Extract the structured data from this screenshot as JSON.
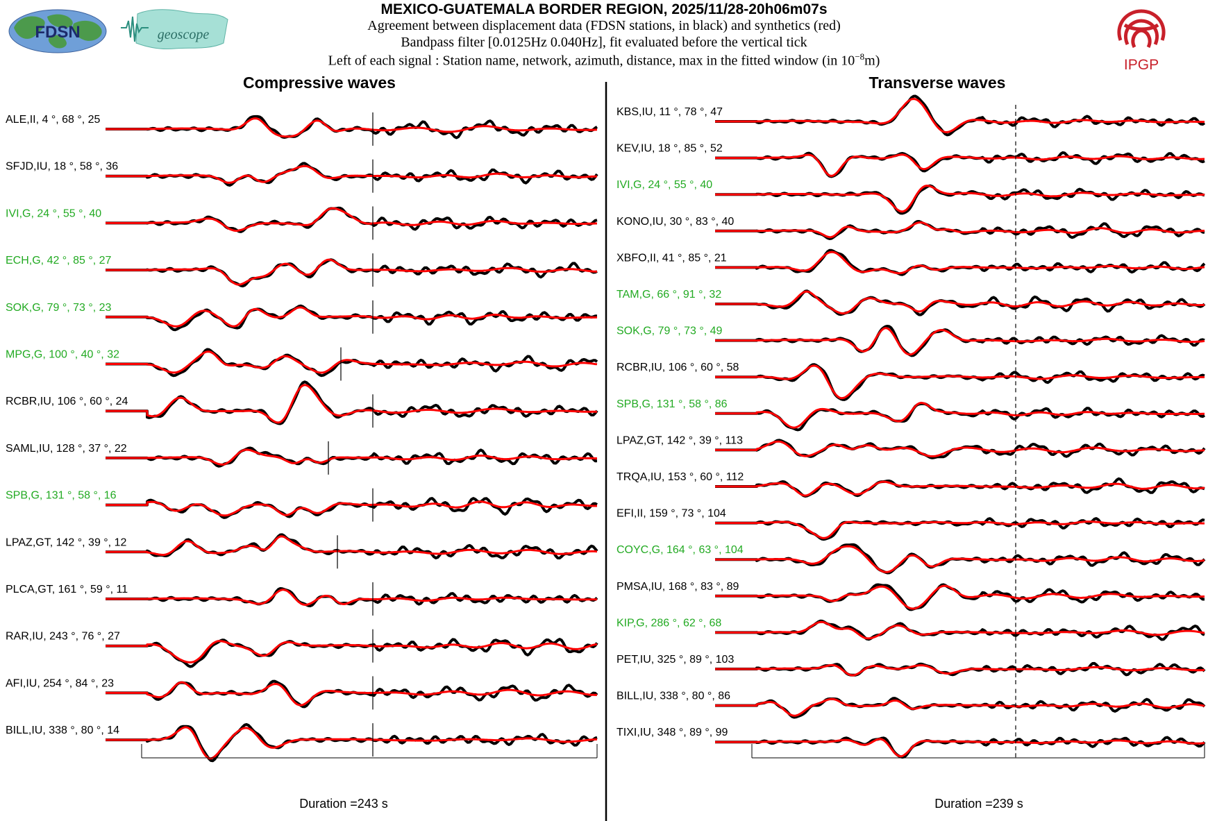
{
  "header": {
    "title": "MEXICO-GUATEMALA BORDER REGION, 2025/11/28-20h06m07s",
    "line1": "Agreement between displacement data (FDSN stations, in black) and synthetics (red)",
    "line2": "Bandpass filter [0.0125Hz 0.040Hz], fit evaluated before the vertical tick",
    "line3_prefix": "Left of each signal : Station name, network, azimuth, distance, max in the fitted window (in 10",
    "line3_exp": "−8",
    "line3_suffix": "m)"
  },
  "logos": {
    "fdsn_text": "FDSN",
    "geoscope_text": "geoscope",
    "ipgp_text": "IPGP"
  },
  "colors": {
    "data": "#000000",
    "synthetic": "#ff0000",
    "label_default": "#000000",
    "label_highlight": "#22aa22",
    "ipgp_red": "#c8202a",
    "fdsn_green": "#3a9a3a",
    "geoscope_teal": "#7ccfc3"
  },
  "chart_data": [
    {
      "type": "line",
      "title": "Compressive waves",
      "duration_label": "Duration =243 s",
      "duration_s": 243,
      "series_legend": [
        "data (black)",
        "synthetics (red)"
      ],
      "stations": [
        {
          "label": "ALE,II, 4 °, 68 °, 25",
          "name": "ALE",
          "network": "II",
          "azimuth": 4,
          "distance": 68,
          "max": 25,
          "highlight": false
        },
        {
          "label": "SFJD,IU, 18 °, 58 °, 36",
          "name": "SFJD",
          "network": "IU",
          "azimuth": 18,
          "distance": 58,
          "max": 36,
          "highlight": false
        },
        {
          "label": "IVI,G, 24 °, 55 °, 40",
          "name": "IVI",
          "network": "G",
          "azimuth": 24,
          "distance": 55,
          "max": 40,
          "highlight": true
        },
        {
          "label": "ECH,G, 42 °, 85 °, 27",
          "name": "ECH",
          "network": "G",
          "azimuth": 42,
          "distance": 85,
          "max": 27,
          "highlight": true
        },
        {
          "label": "SOK,G, 79 °, 73 °, 23",
          "name": "SOK",
          "network": "G",
          "azimuth": 79,
          "distance": 73,
          "max": 23,
          "highlight": true
        },
        {
          "label": "MPG,G, 100 °, 40 °, 32",
          "name": "MPG",
          "network": "G",
          "azimuth": 100,
          "distance": 40,
          "max": 32,
          "highlight": true
        },
        {
          "label": "RCBR,IU, 106 °, 60 °, 24",
          "name": "RCBR",
          "network": "IU",
          "azimuth": 106,
          "distance": 60,
          "max": 24,
          "highlight": false
        },
        {
          "label": "SAML,IU, 128 °, 37 °, 22",
          "name": "SAML",
          "network": "IU",
          "azimuth": 128,
          "distance": 37,
          "max": 22,
          "highlight": false
        },
        {
          "label": "SPB,G, 131 °, 58 °, 16",
          "name": "SPB",
          "network": "G",
          "azimuth": 131,
          "distance": 58,
          "max": 16,
          "highlight": true
        },
        {
          "label": "LPAZ,GT, 142 °, 39 °, 12",
          "name": "LPAZ",
          "network": "GT",
          "azimuth": 142,
          "distance": 39,
          "max": 12,
          "highlight": false
        },
        {
          "label": "PLCA,GT, 161 °, 59 °, 11",
          "name": "PLCA",
          "network": "GT",
          "azimuth": 161,
          "distance": 59,
          "max": 11,
          "highlight": false
        },
        {
          "label": "RAR,IU, 243 °, 76 °, 27",
          "name": "RAR",
          "network": "IU",
          "azimuth": 243,
          "distance": 76,
          "max": 27,
          "highlight": false
        },
        {
          "label": "AFI,IU, 254 °, 84 °, 23",
          "name": "AFI",
          "network": "IU",
          "azimuth": 254,
          "distance": 84,
          "max": 23,
          "highlight": false
        },
        {
          "label": "BILL,IU, 338 °, 80 °, 14",
          "name": "BILL",
          "network": "IU",
          "azimuth": 338,
          "distance": 80,
          "max": 14,
          "highlight": false
        }
      ]
    },
    {
      "type": "line",
      "title": "Transverse waves",
      "duration_label": "Duration =239 s",
      "duration_s": 239,
      "series_legend": [
        "data (black)",
        "synthetics (red)"
      ],
      "stations": [
        {
          "label": "KBS,IU, 11 °, 78 °, 47",
          "name": "KBS",
          "network": "IU",
          "azimuth": 11,
          "distance": 78,
          "max": 47,
          "highlight": false
        },
        {
          "label": "KEV,IU, 18 °, 85 °, 52",
          "name": "KEV",
          "network": "IU",
          "azimuth": 18,
          "distance": 85,
          "max": 52,
          "highlight": false
        },
        {
          "label": "IVI,G, 24 °, 55 °, 40",
          "name": "IVI",
          "network": "G",
          "azimuth": 24,
          "distance": 55,
          "max": 40,
          "highlight": true
        },
        {
          "label": "KONO,IU, 30 °, 83 °, 40",
          "name": "KONO",
          "network": "IU",
          "azimuth": 30,
          "distance": 83,
          "max": 40,
          "highlight": false
        },
        {
          "label": "XBFO,II, 41 °, 85 °, 21",
          "name": "XBFO",
          "network": "II",
          "azimuth": 41,
          "distance": 85,
          "max": 21,
          "highlight": false
        },
        {
          "label": "TAM,G, 66 °, 91 °, 32",
          "name": "TAM",
          "network": "G",
          "azimuth": 66,
          "distance": 91,
          "max": 32,
          "highlight": true
        },
        {
          "label": "SOK,G, 79 °, 73 °, 49",
          "name": "SOK",
          "network": "G",
          "azimuth": 79,
          "distance": 73,
          "max": 49,
          "highlight": true
        },
        {
          "label": "RCBR,IU, 106 °, 60 °, 58",
          "name": "RCBR",
          "network": "IU",
          "azimuth": 106,
          "distance": 60,
          "max": 58,
          "highlight": false
        },
        {
          "label": "SPB,G, 131 °, 58 °, 86",
          "name": "SPB",
          "network": "G",
          "azimuth": 131,
          "distance": 58,
          "max": 86,
          "highlight": true
        },
        {
          "label": "LPAZ,GT, 142 °, 39 °, 113",
          "name": "LPAZ",
          "network": "GT",
          "azimuth": 142,
          "distance": 39,
          "max": 113,
          "highlight": false
        },
        {
          "label": "TRQA,IU, 153 °, 60 °, 112",
          "name": "TRQA",
          "network": "IU",
          "azimuth": 153,
          "distance": 60,
          "max": 112,
          "highlight": false
        },
        {
          "label": "EFI,II, 159 °, 73 °, 104",
          "name": "EFI",
          "network": "II",
          "azimuth": 159,
          "distance": 73,
          "max": 104,
          "highlight": false
        },
        {
          "label": "COYC,G, 164 °, 63 °, 104",
          "name": "COYC",
          "network": "G",
          "azimuth": 164,
          "distance": 63,
          "max": 104,
          "highlight": true
        },
        {
          "label": "PMSA,IU, 168 °, 83 °, 89",
          "name": "PMSA",
          "network": "IU",
          "azimuth": 168,
          "distance": 83,
          "max": 89,
          "highlight": false
        },
        {
          "label": "KIP,G, 286 °, 62 °, 68",
          "name": "KIP",
          "network": "G",
          "azimuth": 286,
          "distance": 62,
          "max": 68,
          "highlight": true
        },
        {
          "label": "PET,IU, 325 °, 89 °, 103",
          "name": "PET",
          "network": "IU",
          "azimuth": 325,
          "distance": 89,
          "max": 103,
          "highlight": false
        },
        {
          "label": "BILL,IU, 338 °, 80 °, 86",
          "name": "BILL",
          "network": "IU",
          "azimuth": 338,
          "distance": 80,
          "max": 86,
          "highlight": false
        },
        {
          "label": "TIXI,IU, 348 °, 89 °, 99",
          "name": "TIXI",
          "network": "IU",
          "azimuth": 348,
          "distance": 89,
          "max": 99,
          "highlight": false
        }
      ]
    }
  ]
}
